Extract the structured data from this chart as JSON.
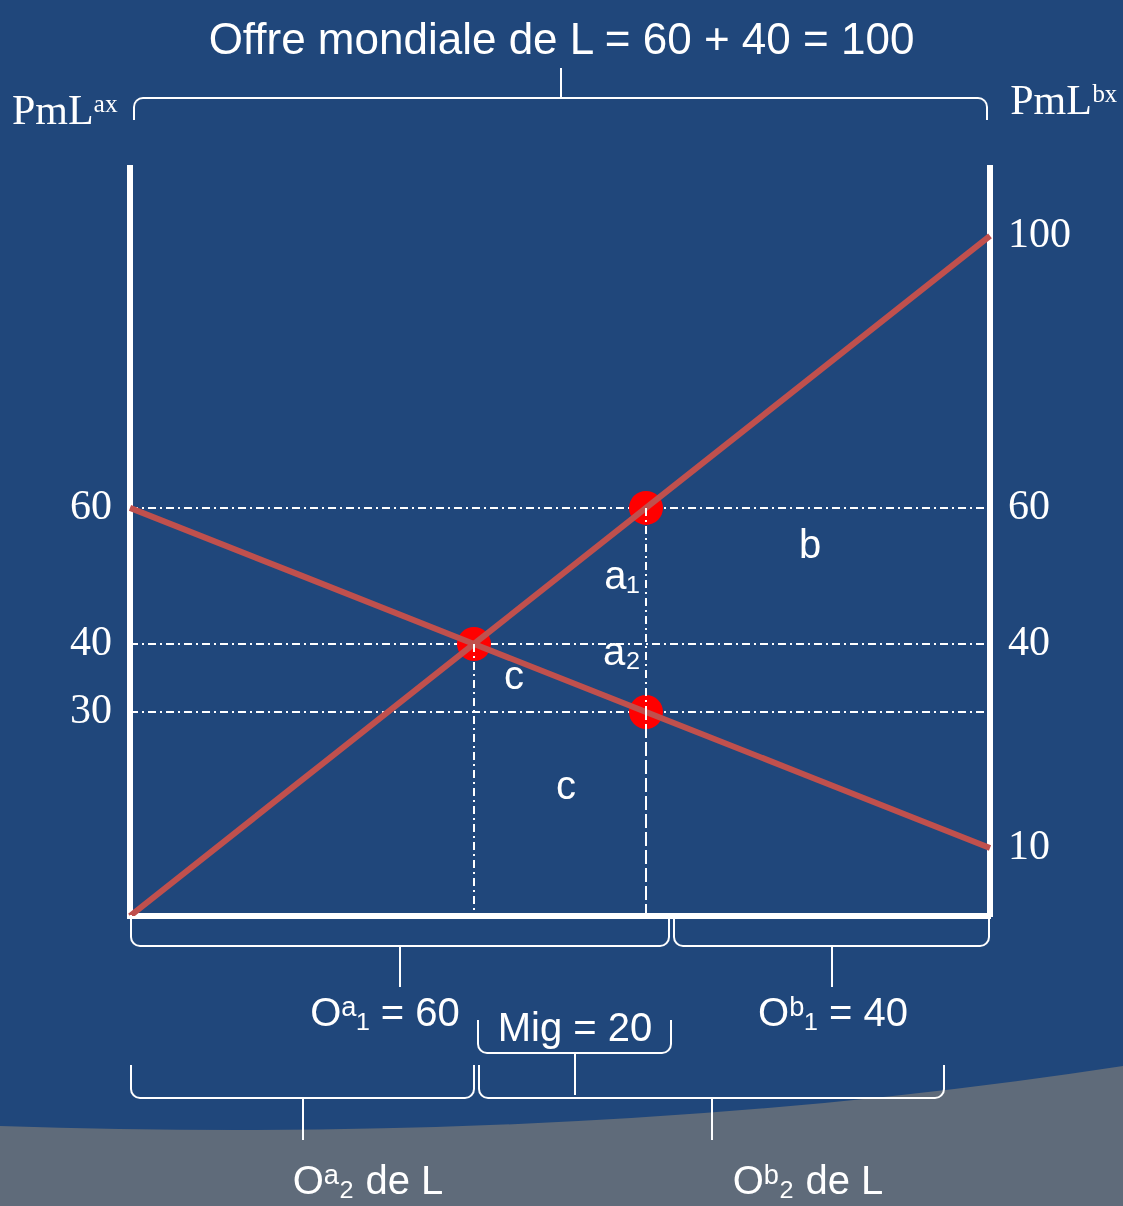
{
  "chart_data": {
    "type": "line",
    "title": "Offre mondiale de L = 60 + 40 = 100",
    "ylabel": "PmLᵃˣ",
    "y2label": "PmLᵇˣ",
    "categories": [
      null,
      null,
      null,
      null,
      null,
      null
    ],
    "ylim": [
      0,
      110
    ],
    "yticks": [
      30,
      40,
      60
    ],
    "y2lim": [
      0,
      110
    ],
    "y2ticks": [
      10,
      40,
      60,
      100
    ],
    "tick_labels": "y",
    "legend": false,
    "line_style": "solid",
    "marker": "none",
    "series": [
      {
        "color": "#c0504d",
        "values": [
          60,
          50,
          40,
          30,
          20,
          10
        ]
      },
      {
        "color": "#c0504d",
        "values": [
          0,
          20,
          40,
          60,
          80,
          100
        ]
      },
      {
        "type": "scatter",
        "color": "#ff0000",
        "marker": "circle",
        "values": [
          null,
          null,
          40,
          60,
          null,
          null
        ]
      },
      {
        "type": "scatter",
        "color": "#ff0000",
        "marker": "circle",
        "values": [
          null,
          null,
          null,
          30,
          null,
          null
        ]
      }
    ],
    "ref_lines": [
      {
        "axis": "y",
        "value": 60,
        "color": "#ffffff",
        "line_style": "dashed"
      },
      {
        "axis": "y",
        "value": 40,
        "color": "#ffffff",
        "line_style": "dashed"
      },
      {
        "axis": "y",
        "value": 30,
        "color": "#ffffff",
        "line_style": "dashed"
      }
    ],
    "annotations": [
      "b",
      "a₁",
      "a₂",
      "c",
      "c",
      "Oᵃ₁ = 60",
      "Mig = 20",
      "Oᵇ₁ = 40",
      "Oᵃ₂ de L",
      "Oᵇ₂ de L"
    ]
  }
}
